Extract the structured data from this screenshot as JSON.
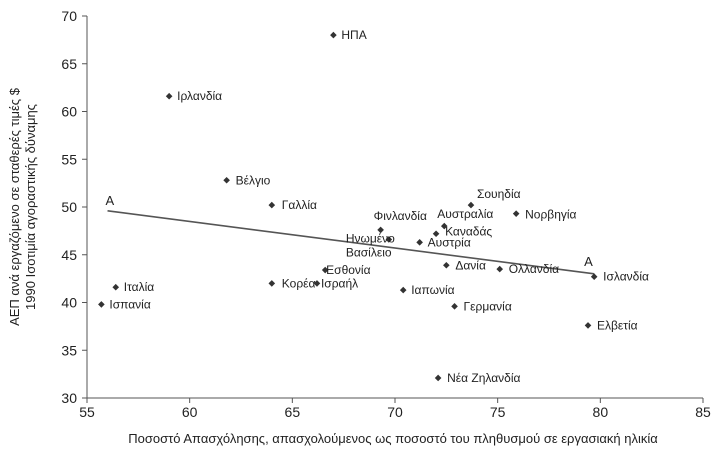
{
  "chart_data": {
    "type": "scatter",
    "xlabel": "Ποσοστό Απασχόλησης, απασχολούμενος ως ποσοστό του πληθυσμού σε εργασιακή ηλικία",
    "ylabel_line1": "ΑΕΠ ανά εργαζόμενο σε σταθερές τιμές $",
    "ylabel_line2": "1990 Ισοτιμία αγοραστικής δύναμης",
    "xlim": [
      55,
      85
    ],
    "ylim": [
      30,
      70
    ],
    "xticks": [
      "55",
      "60",
      "65",
      "70",
      "75",
      "80",
      "85"
    ],
    "yticks": [
      "30",
      "35",
      "40",
      "45",
      "50",
      "55",
      "60",
      "65",
      "70"
    ],
    "grid": false,
    "points": [
      {
        "name": "ΗΠΑ",
        "x": 67.0,
        "y": 68.0
      },
      {
        "name": "Ιρλανδία",
        "x": 59.0,
        "y": 61.6
      },
      {
        "name": "Βέλγιο",
        "x": 61.8,
        "y": 52.8
      },
      {
        "name": "Γαλλία",
        "x": 64.0,
        "y": 50.2
      },
      {
        "name": "Σουηδία",
        "x": 73.7,
        "y": 50.2
      },
      {
        "name": "Νορβηγία",
        "x": 75.9,
        "y": 49.3
      },
      {
        "name": "Αυστραλία",
        "x": 72.4,
        "y": 48.0
      },
      {
        "name": "Φινλανδία",
        "x": 69.3,
        "y": 47.6
      },
      {
        "name": "Καναδάς",
        "x": 72.0,
        "y": 47.2
      },
      {
        "name": "Ηνωμένο Βασίλειο",
        "x": 69.7,
        "y": 46.6
      },
      {
        "name": "Αυστρία",
        "x": 71.2,
        "y": 46.3
      },
      {
        "name": "Δανία",
        "x": 72.5,
        "y": 43.9
      },
      {
        "name": "Ολλανδία",
        "x": 75.1,
        "y": 43.5
      },
      {
        "name": "Ισλανδία",
        "x": 79.7,
        "y": 42.7
      },
      {
        "name": "Εσθονία",
        "x": 66.6,
        "y": 43.4
      },
      {
        "name": "Ιταλία",
        "x": 56.4,
        "y": 41.6
      },
      {
        "name": "Κορέα",
        "x": 64.0,
        "y": 42.0
      },
      {
        "name": "Ισραήλ",
        "x": 66.2,
        "y": 42.0
      },
      {
        "name": "Ιαπωνία",
        "x": 70.4,
        "y": 41.3
      },
      {
        "name": "Ισπανία",
        "x": 55.7,
        "y": 39.8
      },
      {
        "name": "Γερμανία",
        "x": 72.9,
        "y": 39.6
      },
      {
        "name": "Ελβετία",
        "x": 79.4,
        "y": 37.6
      },
      {
        "name": "Νέα Ζηλανδία",
        "x": 72.1,
        "y": 32.1
      }
    ],
    "trendline": {
      "x": [
        56.0,
        79.7
      ],
      "y": [
        49.6,
        43.0
      ],
      "start_label": "A",
      "end_label": "A"
    }
  }
}
